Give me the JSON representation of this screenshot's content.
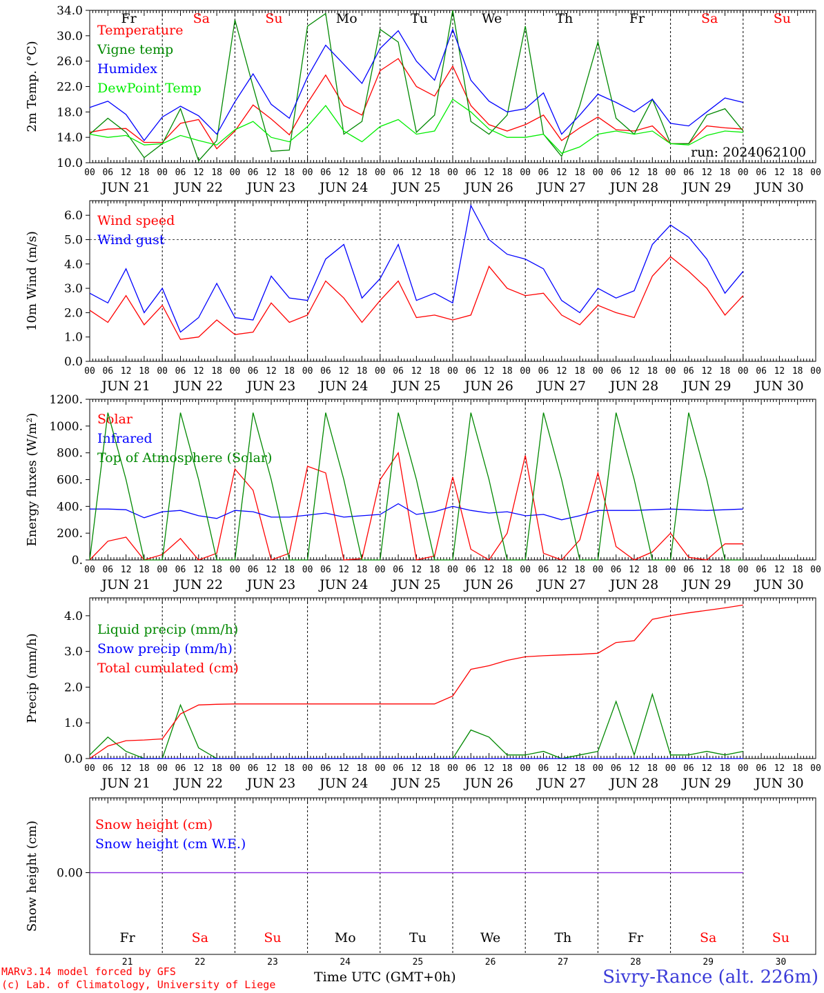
{
  "meteogram": {
    "station": "Sivry-Rance (alt. 226m)",
    "run_label": "run: 2024062100",
    "model_credit": "MARv3.14 model forced by GFS",
    "lab_credit": "(c) Lab. of Climatology, University of Liege",
    "time_axis_label": "Time UTC (GMT+0h)",
    "day_labels": [
      "JUN 21",
      "JUN 22",
      "JUN 23",
      "JUN 24",
      "JUN 25",
      "JUN 26",
      "JUN 27",
      "JUN 28",
      "JUN 29",
      "JUN 30"
    ],
    "weekdays": [
      "Fr",
      "Sa",
      "Su",
      "Mo",
      "Tu",
      "We",
      "Th",
      "Fr",
      "Sa",
      "Su"
    ],
    "weekday_colors": [
      "#000000",
      "#ff0000",
      "#ff0000",
      "#000000",
      "#000000",
      "#000000",
      "#000000",
      "#000000",
      "#ff0000",
      "#ff0000"
    ],
    "day_numbers": [
      "21",
      "22",
      "23",
      "24",
      "25",
      "26",
      "27",
      "28",
      "29",
      "30"
    ],
    "hour_ticks": [
      "00",
      "06",
      "12",
      "18"
    ],
    "final_tick": "00"
  },
  "chart_data": [
    {
      "type": "line",
      "ylabel": "2m Temp. (°C)",
      "ylim": [
        10,
        34
      ],
      "yticks": [
        "10.0",
        "14.0",
        "18.0",
        "22.0",
        "26.0",
        "30.0",
        "34.0"
      ],
      "x_start": "2024-06-21 00 UTC",
      "x_step_hours": 6,
      "series": [
        {
          "name": "Temperature",
          "color": "#ff0000",
          "values": [
            14.8,
            15.3,
            15.4,
            13.2,
            13.2,
            16.2,
            16.8,
            12.2,
            15.0,
            19.1,
            16.9,
            14.4,
            19.4,
            23.8,
            19.0,
            17.5,
            24.5,
            26.4,
            22.0,
            20.5,
            25.2,
            19.0,
            16.0,
            15.0,
            16.0,
            17.5,
            13.5,
            15.5,
            17.2,
            15.2,
            15.0,
            15.8,
            13.0,
            13.0,
            15.8,
            15.5,
            15.3
          ]
        },
        {
          "name": "Vigne temp",
          "color": "#008800",
          "values": [
            14.5,
            17.0,
            14.8,
            10.8,
            13.0,
            18.5,
            10.3,
            13.5,
            32.5,
            22.0,
            11.8,
            12.0,
            31.5,
            33.5,
            14.5,
            16.5,
            31.0,
            29.0,
            14.8,
            17.5,
            34.0,
            16.5,
            14.5,
            17.5,
            31.5,
            14.5,
            11.0,
            19.0,
            29.0,
            17.0,
            14.5,
            20.0,
            13.0,
            13.0,
            17.5,
            18.5,
            15.0
          ]
        },
        {
          "name": "Humidex",
          "color": "#0000ff",
          "values": [
            18.7,
            19.7,
            17.6,
            13.5,
            17.2,
            18.9,
            17.4,
            14.5,
            19.6,
            24.0,
            19.2,
            17.0,
            23.5,
            28.5,
            25.5,
            22.5,
            28.0,
            30.8,
            26.0,
            23.0,
            31.0,
            23.0,
            19.7,
            18.0,
            18.5,
            21.0,
            14.5,
            17.5,
            20.8,
            19.5,
            18.0,
            20.0,
            16.2,
            15.8,
            18.0,
            20.2,
            19.5
          ]
        },
        {
          "name": "DewPoint Temp",
          "color": "#00ee00",
          "values": [
            14.5,
            14.0,
            14.3,
            12.8,
            13.0,
            14.3,
            13.5,
            12.8,
            15.2,
            16.5,
            14.0,
            13.3,
            15.7,
            19.0,
            15.0,
            13.3,
            15.7,
            16.8,
            14.5,
            15.0,
            20.0,
            18.0,
            15.3,
            14.0,
            14.0,
            14.5,
            11.5,
            12.5,
            14.5,
            15.0,
            14.5,
            15.0,
            13.0,
            12.8,
            14.3,
            15.0,
            14.8
          ]
        }
      ]
    },
    {
      "type": "line",
      "ylabel": "10m Wind (m/s)",
      "ylim": [
        0,
        6.6
      ],
      "yticks": [
        "0.0",
        "1.0",
        "2.0",
        "3.0",
        "4.0",
        "5.0",
        "6.0"
      ],
      "reference_line": 5.0,
      "x_start": "2024-06-21 00 UTC",
      "x_step_hours": 6,
      "series": [
        {
          "name": "Wind speed",
          "color": "#ff0000",
          "values": [
            2.1,
            1.6,
            2.7,
            1.5,
            2.3,
            0.9,
            1.0,
            1.7,
            1.1,
            1.2,
            2.4,
            1.6,
            1.9,
            3.3,
            2.6,
            1.6,
            2.5,
            3.3,
            1.8,
            1.9,
            1.7,
            1.9,
            3.9,
            3.0,
            2.7,
            2.8,
            1.9,
            1.5,
            2.3,
            2.0,
            1.8,
            3.5,
            4.3,
            3.7,
            3.0,
            1.9,
            2.7
          ]
        },
        {
          "name": "Wind gust",
          "color": "#0000ff",
          "values": [
            2.8,
            2.4,
            3.8,
            2.0,
            3.0,
            1.2,
            1.8,
            3.2,
            1.8,
            1.7,
            3.5,
            2.6,
            2.5,
            4.2,
            4.8,
            2.6,
            3.4,
            4.8,
            2.5,
            2.8,
            2.4,
            6.4,
            5.0,
            4.4,
            4.2,
            3.8,
            2.5,
            2.0,
            3.0,
            2.6,
            2.9,
            4.8,
            5.6,
            5.1,
            4.2,
            2.8,
            3.7
          ]
        }
      ]
    },
    {
      "type": "line",
      "ylabel": "Energy fluxes (W/m²)",
      "ylim": [
        0,
        1200
      ],
      "yticks": [
        "0.",
        "200.",
        "400.",
        "600.",
        "800.",
        "1000.",
        "1200."
      ],
      "x_start": "2024-06-21 00 UTC",
      "x_step_hours": 6,
      "series": [
        {
          "name": "Solar",
          "color": "#ff0000",
          "values": [
            0,
            140,
            170,
            0,
            40,
            160,
            0,
            50,
            680,
            520,
            0,
            50,
            700,
            650,
            0,
            10,
            600,
            800,
            0,
            30,
            620,
            80,
            0,
            200,
            780,
            50,
            0,
            150,
            650,
            100,
            0,
            60,
            200,
            20,
            0,
            120,
            120
          ]
        },
        {
          "name": "Infrared",
          "color": "#0000ff",
          "values": [
            380,
            380,
            375,
            315,
            360,
            370,
            330,
            310,
            370,
            360,
            320,
            320,
            335,
            350,
            320,
            330,
            340,
            420,
            340,
            360,
            400,
            370,
            350,
            360,
            330,
            340,
            300,
            330,
            370,
            370,
            370,
            375,
            380,
            375,
            370,
            375,
            380
          ]
        },
        {
          "name": "Top of Atmosphere (Solar)",
          "color": "#008800",
          "values": [
            0,
            1100,
            600,
            0,
            0,
            1100,
            600,
            0,
            0,
            1100,
            600,
            0,
            0,
            1100,
            600,
            0,
            0,
            1100,
            600,
            0,
            0,
            1100,
            600,
            0,
            0,
            1100,
            600,
            0,
            0,
            1100,
            600,
            0,
            0,
            1100,
            600,
            0,
            0
          ]
        }
      ]
    },
    {
      "type": "line",
      "ylabel": "Precip (mm/h)",
      "ylim": [
        0,
        4.5
      ],
      "yticks": [
        "0.0",
        "1.0",
        "2.0",
        "3.0",
        "4.0"
      ],
      "x_start": "2024-06-21 00 UTC",
      "x_step_hours": 6,
      "series": [
        {
          "name": "Liquid precip (mm/h)",
          "color": "#008800",
          "values": [
            0.1,
            0.6,
            0.2,
            0,
            0,
            1.5,
            0.3,
            0,
            0,
            0,
            0,
            0,
            0,
            0,
            0,
            0,
            0,
            0,
            0,
            0,
            0,
            0.8,
            0.6,
            0.1,
            0.1,
            0.2,
            0,
            0.1,
            0.2,
            1.6,
            0.1,
            1.8,
            0.1,
            0.1,
            0.2,
            0.1,
            0.2
          ]
        },
        {
          "name": "Snow precip (mm/h)",
          "color": "#0000ff",
          "values": [
            0,
            0,
            0,
            0,
            0,
            0,
            0,
            0,
            0,
            0,
            0,
            0,
            0,
            0,
            0,
            0,
            0,
            0,
            0,
            0,
            0,
            0,
            0,
            0,
            0,
            0,
            0,
            0,
            0,
            0,
            0,
            0,
            0,
            0,
            0,
            0,
            0
          ]
        },
        {
          "name": "Total cumulated (cm)",
          "color": "#ff0000",
          "values": [
            0.0,
            0.35,
            0.5,
            0.52,
            0.55,
            1.25,
            1.5,
            1.52,
            1.53,
            1.53,
            1.53,
            1.53,
            1.53,
            1.53,
            1.53,
            1.53,
            1.53,
            1.53,
            1.53,
            1.53,
            1.75,
            2.5,
            2.6,
            2.75,
            2.85,
            2.88,
            2.9,
            2.92,
            2.95,
            3.25,
            3.3,
            3.9,
            4.0,
            4.08,
            4.15,
            4.22,
            4.3
          ]
        }
      ]
    },
    {
      "type": "line",
      "ylabel": "Snow height (cm)",
      "yticks": [
        "0.00"
      ],
      "x_start": "2024-06-21 00 UTC",
      "x_step_hours": 6,
      "series": [
        {
          "name": "Snow height (cm)",
          "color": "#ff0000",
          "values": [
            0,
            0,
            0,
            0,
            0,
            0,
            0,
            0,
            0,
            0,
            0,
            0,
            0,
            0,
            0,
            0,
            0,
            0,
            0,
            0,
            0,
            0,
            0,
            0,
            0,
            0,
            0,
            0,
            0,
            0,
            0,
            0,
            0,
            0,
            0,
            0,
            0
          ]
        },
        {
          "name": "Snow height (cm W.E.)",
          "color": "#0000ff",
          "values": [
            0,
            0,
            0,
            0,
            0,
            0,
            0,
            0,
            0,
            0,
            0,
            0,
            0,
            0,
            0,
            0,
            0,
            0,
            0,
            0,
            0,
            0,
            0,
            0,
            0,
            0,
            0,
            0,
            0,
            0,
            0,
            0,
            0,
            0,
            0,
            0,
            0
          ]
        }
      ]
    }
  ]
}
